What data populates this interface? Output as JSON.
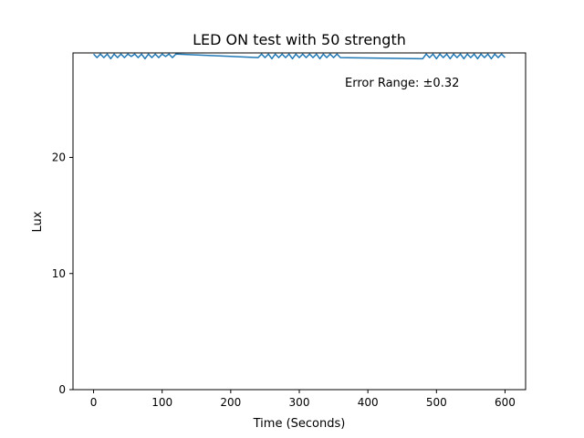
{
  "chart_data": {
    "type": "line",
    "title": "LED ON test with 50 strength",
    "xlabel": "Time (Seconds)",
    "ylabel": "Lux",
    "annotation": "Error Range: ±0.32",
    "xlim": [
      -30,
      630
    ],
    "ylim": [
      0,
      29.0
    ],
    "xticks": [
      0,
      100,
      200,
      300,
      400,
      500,
      600
    ],
    "yticks": [
      0,
      10,
      20
    ],
    "grid": false,
    "legend": "none",
    "series": [
      {
        "color": "#1f77b4",
        "points": [
          [
            0,
            28.9
          ],
          [
            5,
            28.6
          ],
          [
            10,
            28.9
          ],
          [
            15,
            28.6
          ],
          [
            20,
            28.9
          ],
          [
            25,
            28.5
          ],
          [
            30,
            28.9
          ],
          [
            35,
            28.6
          ],
          [
            40,
            28.9
          ],
          [
            45,
            28.6
          ],
          [
            50,
            28.9
          ],
          [
            55,
            28.7
          ],
          [
            60,
            28.9
          ],
          [
            65,
            28.6
          ],
          [
            70,
            28.9
          ],
          [
            75,
            28.5
          ],
          [
            80,
            28.9
          ],
          [
            85,
            28.6
          ],
          [
            90,
            28.9
          ],
          [
            95,
            28.6
          ],
          [
            100,
            28.9
          ],
          [
            105,
            28.7
          ],
          [
            110,
            28.9
          ],
          [
            115,
            28.6
          ],
          [
            120,
            28.9
          ],
          [
            240,
            28.6
          ],
          [
            245,
            28.9
          ],
          [
            250,
            28.6
          ],
          [
            255,
            28.9
          ],
          [
            260,
            28.5
          ],
          [
            265,
            28.9
          ],
          [
            270,
            28.6
          ],
          [
            275,
            28.9
          ],
          [
            280,
            28.6
          ],
          [
            285,
            28.9
          ],
          [
            290,
            28.5
          ],
          [
            295,
            28.9
          ],
          [
            300,
            28.6
          ],
          [
            305,
            28.9
          ],
          [
            310,
            28.6
          ],
          [
            315,
            28.9
          ],
          [
            320,
            28.6
          ],
          [
            325,
            28.9
          ],
          [
            330,
            28.5
          ],
          [
            335,
            28.9
          ],
          [
            340,
            28.6
          ],
          [
            345,
            28.9
          ],
          [
            350,
            28.6
          ],
          [
            355,
            28.9
          ],
          [
            360,
            28.6
          ],
          [
            480,
            28.5
          ],
          [
            485,
            28.9
          ],
          [
            490,
            28.6
          ],
          [
            495,
            28.9
          ],
          [
            500,
            28.5
          ],
          [
            505,
            28.9
          ],
          [
            510,
            28.6
          ],
          [
            515,
            28.9
          ],
          [
            520,
            28.5
          ],
          [
            525,
            28.9
          ],
          [
            530,
            28.6
          ],
          [
            535,
            28.9
          ],
          [
            540,
            28.5
          ],
          [
            545,
            28.9
          ],
          [
            550,
            28.6
          ],
          [
            555,
            28.9
          ],
          [
            560,
            28.5
          ],
          [
            565,
            28.9
          ],
          [
            570,
            28.6
          ],
          [
            575,
            28.9
          ],
          [
            580,
            28.5
          ],
          [
            585,
            28.9
          ],
          [
            590,
            28.6
          ],
          [
            595,
            28.9
          ],
          [
            600,
            28.6
          ]
        ]
      }
    ]
  }
}
